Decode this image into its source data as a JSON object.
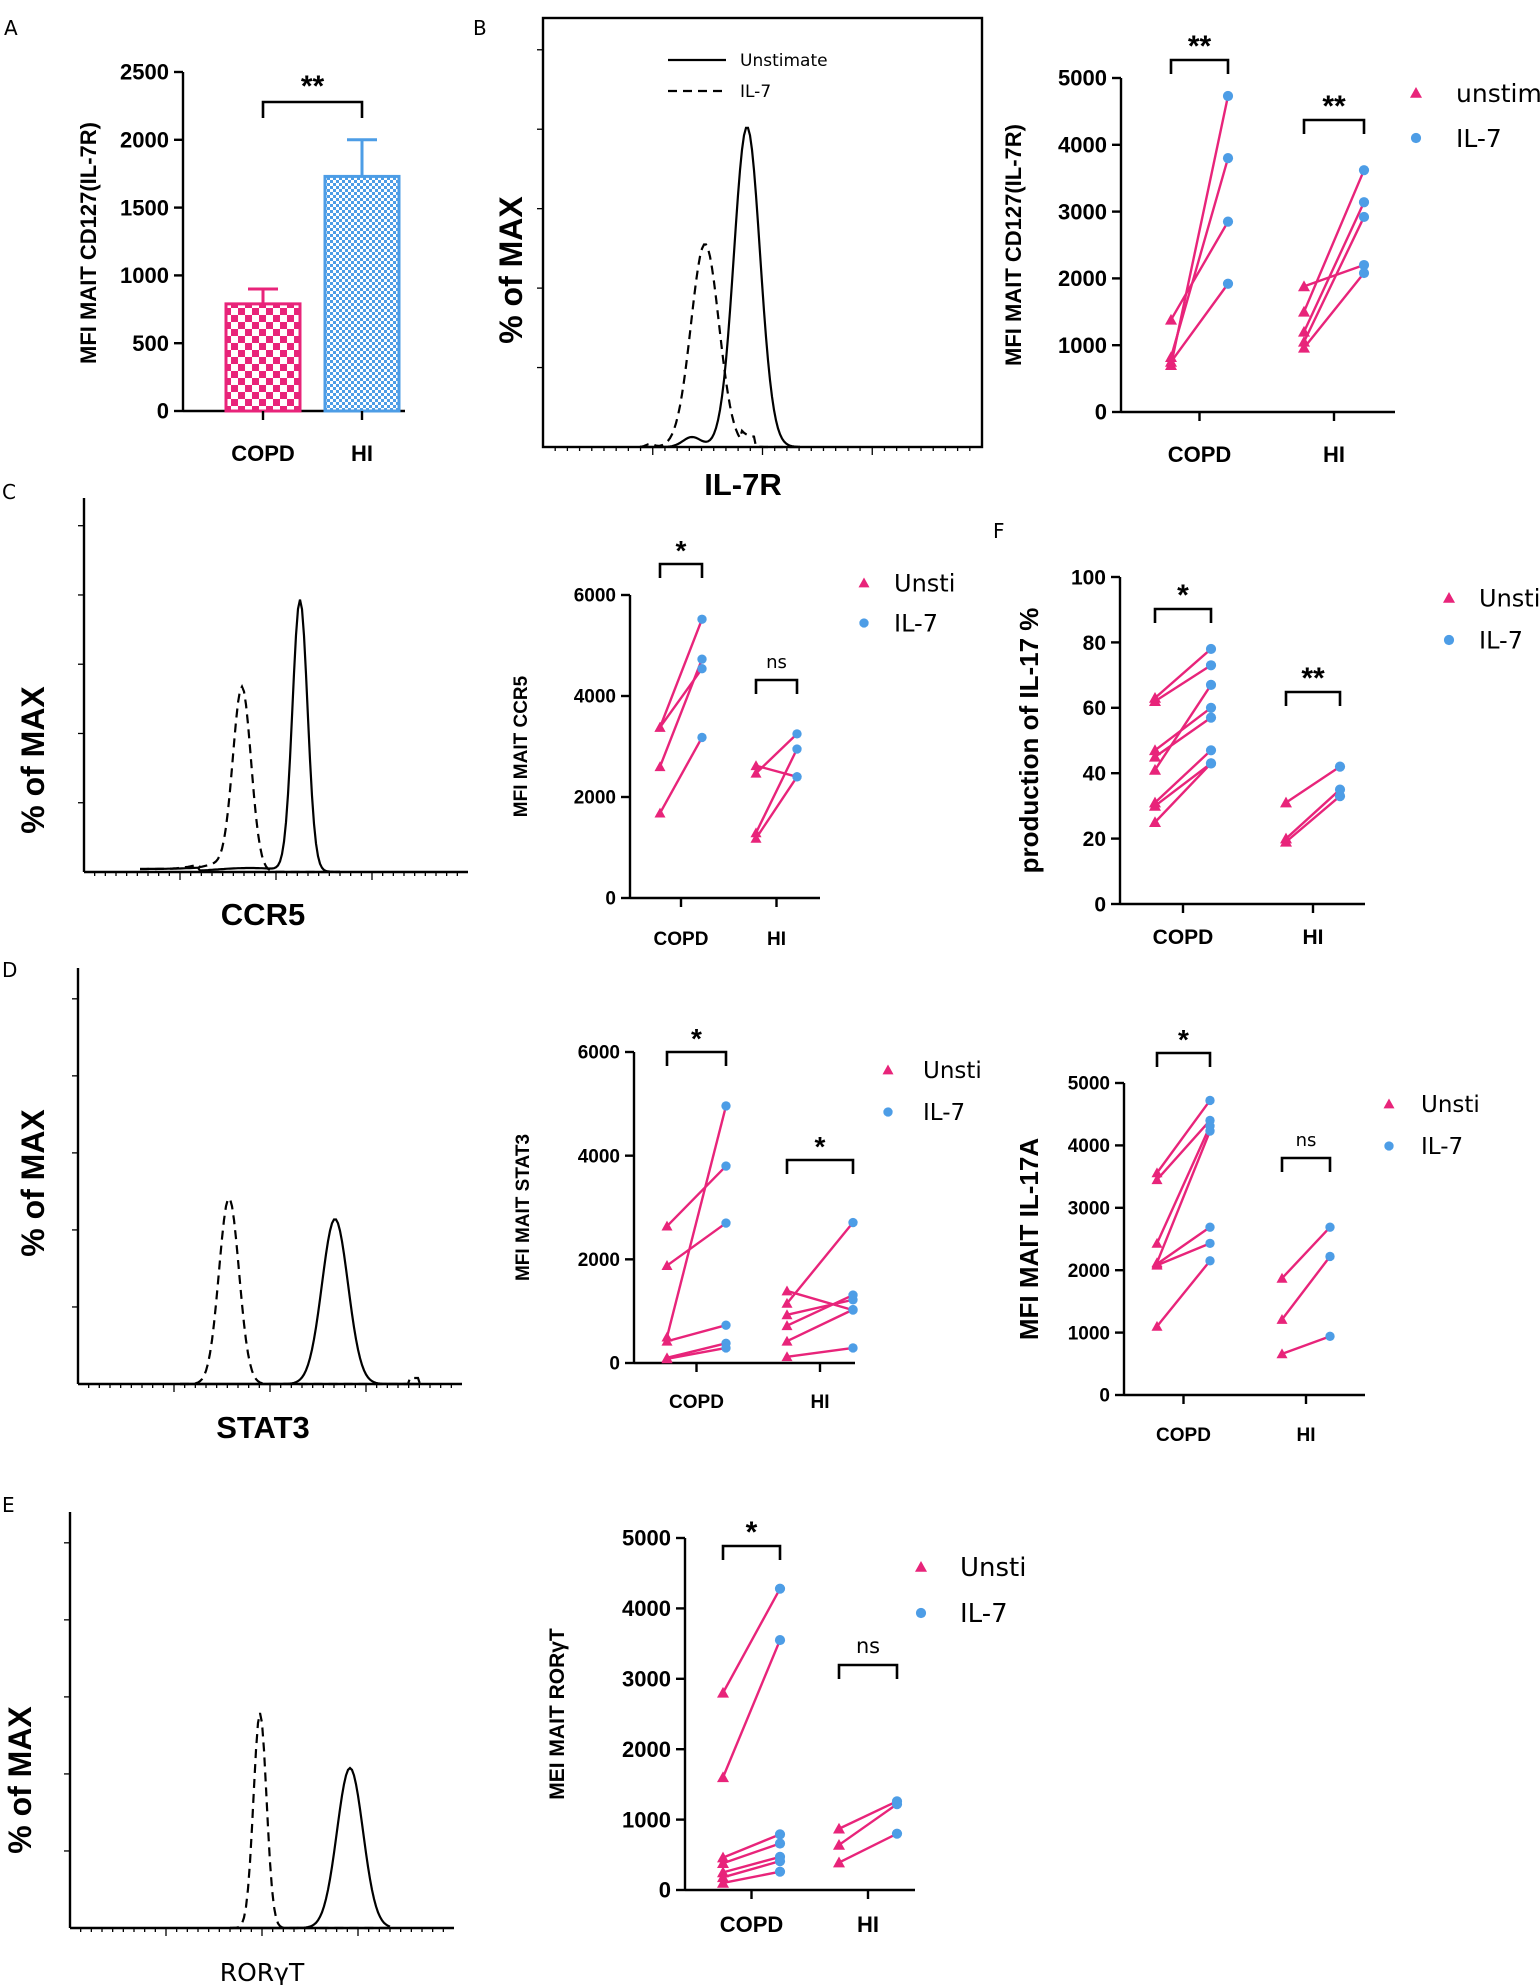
{
  "colors": {
    "unstim": "#e8247a",
    "il7": "#4d9de6",
    "axis": "#000000"
  },
  "panel_letters": [
    "A",
    "B",
    "C",
    "D",
    "E",
    "F"
  ],
  "chart_data": [
    {
      "id": "A",
      "type": "bar",
      "categories": [
        "COPD",
        "HI"
      ],
      "values": [
        790,
        1730
      ],
      "errors": [
        110,
        270
      ],
      "ylabel": "MFI MAIT CD127(IL-7R)",
      "ylim": [
        0,
        2500
      ],
      "yticks": [
        "0",
        "500",
        "1000",
        "1500",
        "2000",
        "2500"
      ],
      "significance": "**",
      "bar_colors": [
        "#e8247a",
        "#4d9de6"
      ],
      "bar_patterns": [
        "checker",
        "fine-checker"
      ]
    },
    {
      "id": "B-hist",
      "type": "histogram",
      "xlabel": "IL-7R",
      "ylabel": "% of MAX",
      "legend": [
        {
          "label": "Unstimate",
          "style": "solid"
        },
        {
          "label": "IL-7",
          "style": "dashed"
        }
      ]
    },
    {
      "id": "B",
      "type": "paired-scatter",
      "ylabel": "MFI MAIT CD127(IL-7R)",
      "ylim": [
        0,
        5000
      ],
      "yticks": [
        "0",
        "1000",
        "2000",
        "3000",
        "4000",
        "5000"
      ],
      "groups": [
        {
          "name": "COPD",
          "significance": "**",
          "pairs": [
            [
              700,
              4730
            ],
            [
              820,
              3800
            ],
            [
              1380,
              2850
            ],
            [
              750,
              1920
            ]
          ]
        },
        {
          "name": "HI",
          "significance": "**",
          "pairs": [
            [
              1880,
              2200
            ],
            [
              1500,
              3620
            ],
            [
              1200,
              3140
            ],
            [
              1050,
              2920
            ],
            [
              960,
              2080
            ]
          ]
        }
      ],
      "legend": [
        "unstim",
        "IL-7"
      ]
    },
    {
      "id": "C-hist",
      "type": "histogram",
      "xlabel": "CCR5",
      "ylabel": "% of MAX"
    },
    {
      "id": "C",
      "type": "paired-scatter",
      "ylabel": "MFI MAIT CCR5",
      "ylim": [
        0,
        6000
      ],
      "yticks": [
        "0",
        "2000",
        "4000",
        "6000"
      ],
      "groups": [
        {
          "name": "COPD",
          "significance": "*",
          "pairs": [
            [
              3380,
              5520
            ],
            [
              3380,
              4540
            ],
            [
              2600,
              4730
            ],
            [
              1680,
              3180
            ]
          ]
        },
        {
          "name": "HI",
          "significance": "ns",
          "pairs": [
            [
              2620,
              2400
            ],
            [
              2470,
              3250
            ],
            [
              1290,
              2950
            ],
            [
              1180,
              2400
            ]
          ]
        }
      ],
      "legend": [
        "Unsti",
        "IL-7"
      ]
    },
    {
      "id": "F",
      "type": "paired-scatter",
      "ylabel": "production of IL-17 %",
      "ylim": [
        0,
        100
      ],
      "yticks": [
        "0",
        "20",
        "40",
        "60",
        "80",
        "100"
      ],
      "groups": [
        {
          "name": "COPD",
          "significance": "*",
          "pairs": [
            [
              63,
              78
            ],
            [
              62,
              73
            ],
            [
              47,
              60
            ],
            [
              45,
              57
            ],
            [
              41,
              67
            ],
            [
              31,
              47
            ],
            [
              30,
              43
            ],
            [
              25,
              43
            ]
          ]
        },
        {
          "name": "HI",
          "significance": "**",
          "pairs": [
            [
              31,
              42
            ],
            [
              20,
              35
            ],
            [
              19,
              33
            ]
          ]
        }
      ],
      "legend": [
        "Unsti",
        "IL-7"
      ]
    },
    {
      "id": "D-hist",
      "type": "histogram",
      "xlabel": "STAT3",
      "ylabel": "% of MAX"
    },
    {
      "id": "D",
      "type": "paired-scatter",
      "ylabel": "MFI MAIT STAT3",
      "ylim": [
        0,
        6000
      ],
      "yticks": [
        "0",
        "2000",
        "4000",
        "6000"
      ],
      "groups": [
        {
          "name": "COPD",
          "significance": "*",
          "pairs": [
            [
              2640,
              3800
            ],
            [
              1880,
              2700
            ],
            [
              500,
              4960
            ],
            [
              420,
              730
            ],
            [
              100,
              380
            ],
            [
              80,
              290
            ]
          ]
        },
        {
          "name": "HI",
          "significance": "*",
          "pairs": [
            [
              1390,
              1020
            ],
            [
              1150,
              2710
            ],
            [
              930,
              1220
            ],
            [
              720,
              1310
            ],
            [
              420,
              1030
            ],
            [
              120,
              290
            ]
          ]
        }
      ],
      "legend": [
        "Unsti",
        "IL-7"
      ]
    },
    {
      "id": "D2",
      "type": "paired-scatter",
      "ylabel": "MFI MAIT IL-17A",
      "ylim": [
        0,
        5000
      ],
      "yticks": [
        "0",
        "1000",
        "2000",
        "3000",
        "4000",
        "5000"
      ],
      "groups": [
        {
          "name": "COPD",
          "significance": "*",
          "pairs": [
            [
              3560,
              4720
            ],
            [
              3450,
              4400
            ],
            [
              2430,
              4310
            ],
            [
              2120,
              4230
            ],
            [
              2100,
              2690
            ],
            [
              2080,
              2430
            ],
            [
              1100,
              2150
            ]
          ]
        },
        {
          "name": "HI",
          "significance": "ns",
          "pairs": [
            [
              1870,
              2690
            ],
            [
              1210,
              2220
            ],
            [
              660,
              940
            ]
          ]
        }
      ],
      "legend": [
        "Unsti",
        "IL-7"
      ]
    },
    {
      "id": "E-hist",
      "type": "histogram",
      "xlabel": "RORγT",
      "ylabel": "% of MAX"
    },
    {
      "id": "E",
      "type": "paired-scatter",
      "ylabel": "MEI MAIT RORγT",
      "ylim": [
        0,
        5000
      ],
      "yticks": [
        "0",
        "1000",
        "2000",
        "3000",
        "4000",
        "5000"
      ],
      "groups": [
        {
          "name": "COPD",
          "significance": "*",
          "pairs": [
            [
              2800,
              4280
            ],
            [
              1600,
              3550
            ],
            [
              460,
              790
            ],
            [
              380,
              660
            ],
            [
              250,
              470
            ],
            [
              180,
              410
            ],
            [
              100,
              260
            ]
          ]
        },
        {
          "name": "HI",
          "significance": "ns",
          "pairs": [
            [
              870,
              1260
            ],
            [
              640,
              1220
            ],
            [
              390,
              800
            ]
          ]
        }
      ],
      "legend": [
        "Unsti",
        "IL-7"
      ]
    }
  ]
}
